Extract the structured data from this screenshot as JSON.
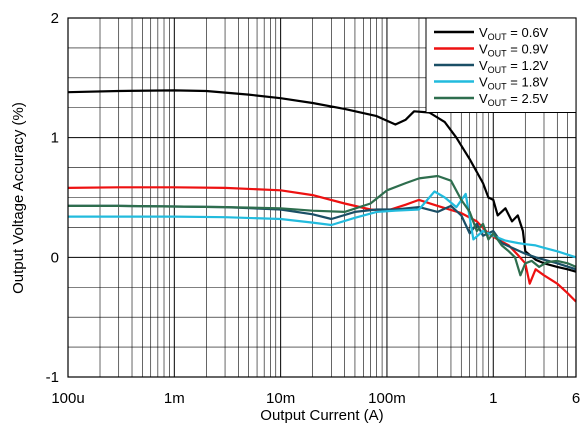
{
  "chart_data": {
    "type": "line",
    "xlabel": "Output Current (A)",
    "ylabel": "Output Voltage Accuracy (%)",
    "xscale": "log",
    "xlim": [
      0.0001,
      6
    ],
    "ylim": [
      -1,
      2
    ],
    "x_ticks": [
      {
        "value": 0.0001,
        "label": "100u"
      },
      {
        "value": 0.001,
        "label": "1m"
      },
      {
        "value": 0.01,
        "label": "10m"
      },
      {
        "value": 0.1,
        "label": "100m"
      },
      {
        "value": 1,
        "label": "1"
      },
      {
        "value": 6,
        "label": "6"
      }
    ],
    "y_ticks": [
      {
        "value": -1,
        "label": "-1"
      },
      {
        "value": 0,
        "label": "0"
      },
      {
        "value": 1,
        "label": "1"
      },
      {
        "value": 2,
        "label": "2"
      }
    ],
    "grid": true,
    "legend": {
      "position": "top-right"
    },
    "series": [
      {
        "name": "V_OUT = 0.6V",
        "label_main": "V",
        "label_sub": "OUT",
        "label_rest": " = 0.6V",
        "color": "#000000",
        "points": [
          [
            0.0001,
            1.38
          ],
          [
            0.0003,
            1.39
          ],
          [
            0.001,
            1.395
          ],
          [
            0.002,
            1.39
          ],
          [
            0.005,
            1.36
          ],
          [
            0.01,
            1.33
          ],
          [
            0.02,
            1.29
          ],
          [
            0.04,
            1.24
          ],
          [
            0.08,
            1.18
          ],
          [
            0.12,
            1.11
          ],
          [
            0.15,
            1.15
          ],
          [
            0.18,
            1.22
          ],
          [
            0.25,
            1.21
          ],
          [
            0.35,
            1.13
          ],
          [
            0.45,
            1.0
          ],
          [
            0.6,
            0.82
          ],
          [
            0.8,
            0.62
          ],
          [
            0.9,
            0.5
          ],
          [
            1.0,
            0.48
          ],
          [
            1.1,
            0.35
          ],
          [
            1.3,
            0.41
          ],
          [
            1.5,
            0.3
          ],
          [
            1.7,
            0.35
          ],
          [
            1.9,
            0.22
          ],
          [
            2.0,
            0.05
          ],
          [
            2.5,
            -0.02
          ],
          [
            3,
            -0.05
          ],
          [
            4,
            -0.08
          ],
          [
            5,
            -0.1
          ],
          [
            6,
            -0.12
          ]
        ]
      },
      {
        "name": "V_OUT = 0.9V",
        "label_main": "V",
        "label_sub": "OUT",
        "label_rest": " = 0.9V",
        "color": "#ee1111",
        "points": [
          [
            0.0001,
            0.58
          ],
          [
            0.0003,
            0.585
          ],
          [
            0.001,
            0.585
          ],
          [
            0.003,
            0.58
          ],
          [
            0.01,
            0.56
          ],
          [
            0.02,
            0.52
          ],
          [
            0.04,
            0.45
          ],
          [
            0.07,
            0.4
          ],
          [
            0.1,
            0.39
          ],
          [
            0.15,
            0.44
          ],
          [
            0.2,
            0.48
          ],
          [
            0.3,
            0.43
          ],
          [
            0.5,
            0.37
          ],
          [
            0.7,
            0.3
          ],
          [
            0.9,
            0.2
          ],
          [
            1.1,
            0.15
          ],
          [
            1.4,
            0.1
          ],
          [
            1.7,
            0.02
          ],
          [
            2.0,
            -0.05
          ],
          [
            2.2,
            -0.22
          ],
          [
            2.5,
            -0.1
          ],
          [
            3,
            -0.15
          ],
          [
            4,
            -0.22
          ],
          [
            5,
            -0.3
          ],
          [
            6,
            -0.37
          ]
        ]
      },
      {
        "name": "V_OUT = 1.2V",
        "label_main": "V",
        "label_sub": "OUT",
        "label_rest": " = 1.2V",
        "color": "#1a4f66",
        "points": [
          [
            0.0001,
            0.43
          ],
          [
            0.0003,
            0.43
          ],
          [
            0.001,
            0.425
          ],
          [
            0.003,
            0.42
          ],
          [
            0.01,
            0.4
          ],
          [
            0.02,
            0.36
          ],
          [
            0.03,
            0.32
          ],
          [
            0.05,
            0.38
          ],
          [
            0.08,
            0.4
          ],
          [
            0.12,
            0.4
          ],
          [
            0.2,
            0.42
          ],
          [
            0.3,
            0.38
          ],
          [
            0.4,
            0.43
          ],
          [
            0.5,
            0.35
          ],
          [
            0.6,
            0.2
          ],
          [
            0.7,
            0.28
          ],
          [
            0.8,
            0.18
          ],
          [
            1.0,
            0.22
          ],
          [
            1.2,
            0.12
          ],
          [
            1.5,
            0.08
          ],
          [
            2.0,
            0.03
          ],
          [
            2.5,
            0.0
          ],
          [
            3,
            -0.02
          ],
          [
            4,
            -0.05
          ],
          [
            6,
            -0.1
          ]
        ]
      },
      {
        "name": "V_OUT = 1.8V",
        "label_main": "V",
        "label_sub": "OUT",
        "label_rest": " = 1.8V",
        "color": "#22bbdd",
        "points": [
          [
            0.0001,
            0.34
          ],
          [
            0.0003,
            0.34
          ],
          [
            0.001,
            0.34
          ],
          [
            0.003,
            0.335
          ],
          [
            0.01,
            0.32
          ],
          [
            0.02,
            0.29
          ],
          [
            0.03,
            0.27
          ],
          [
            0.05,
            0.33
          ],
          [
            0.08,
            0.38
          ],
          [
            0.12,
            0.39
          ],
          [
            0.2,
            0.4
          ],
          [
            0.28,
            0.55
          ],
          [
            0.35,
            0.5
          ],
          [
            0.45,
            0.42
          ],
          [
            0.55,
            0.53
          ],
          [
            0.65,
            0.15
          ],
          [
            0.8,
            0.22
          ],
          [
            1.0,
            0.18
          ],
          [
            1.3,
            0.14
          ],
          [
            1.7,
            0.12
          ],
          [
            2.0,
            0.11
          ],
          [
            2.5,
            0.1
          ],
          [
            3,
            0.08
          ],
          [
            4,
            0.05
          ],
          [
            6,
            0.0
          ]
        ]
      },
      {
        "name": "V_OUT = 2.5V",
        "label_main": "V",
        "label_sub": "OUT",
        "label_rest": " = 2.5V",
        "color": "#2e6e4e",
        "points": [
          [
            0.0001,
            0.43
          ],
          [
            0.0003,
            0.43
          ],
          [
            0.001,
            0.425
          ],
          [
            0.003,
            0.42
          ],
          [
            0.01,
            0.41
          ],
          [
            0.02,
            0.39
          ],
          [
            0.04,
            0.38
          ],
          [
            0.07,
            0.45
          ],
          [
            0.1,
            0.56
          ],
          [
            0.15,
            0.62
          ],
          [
            0.2,
            0.66
          ],
          [
            0.3,
            0.68
          ],
          [
            0.4,
            0.64
          ],
          [
            0.5,
            0.48
          ],
          [
            0.6,
            0.38
          ],
          [
            0.7,
            0.22
          ],
          [
            0.8,
            0.28
          ],
          [
            0.9,
            0.15
          ],
          [
            1.0,
            0.2
          ],
          [
            1.2,
            0.1
          ],
          [
            1.4,
            0.05
          ],
          [
            1.6,
            0.0
          ],
          [
            1.8,
            -0.15
          ],
          [
            2.0,
            -0.05
          ],
          [
            2.3,
            -0.03
          ],
          [
            2.7,
            -0.08
          ],
          [
            3.2,
            -0.04
          ],
          [
            4,
            -0.03
          ],
          [
            5,
            -0.05
          ],
          [
            6,
            -0.08
          ]
        ]
      }
    ]
  }
}
